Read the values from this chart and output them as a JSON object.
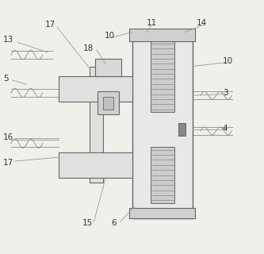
{
  "bg_color": "#f0f0eb",
  "line_color": "#999999",
  "dark_line": "#666666",
  "text_color": "#333333",
  "label_texts": {
    "13": "13",
    "5": "5",
    "17a": "17",
    "17b": "17",
    "16": "16",
    "15": "15",
    "6": "6",
    "18": "18",
    "10a": "10",
    "10b": "10",
    "11": "11",
    "14": "14",
    "3": "3",
    "4": "4"
  }
}
